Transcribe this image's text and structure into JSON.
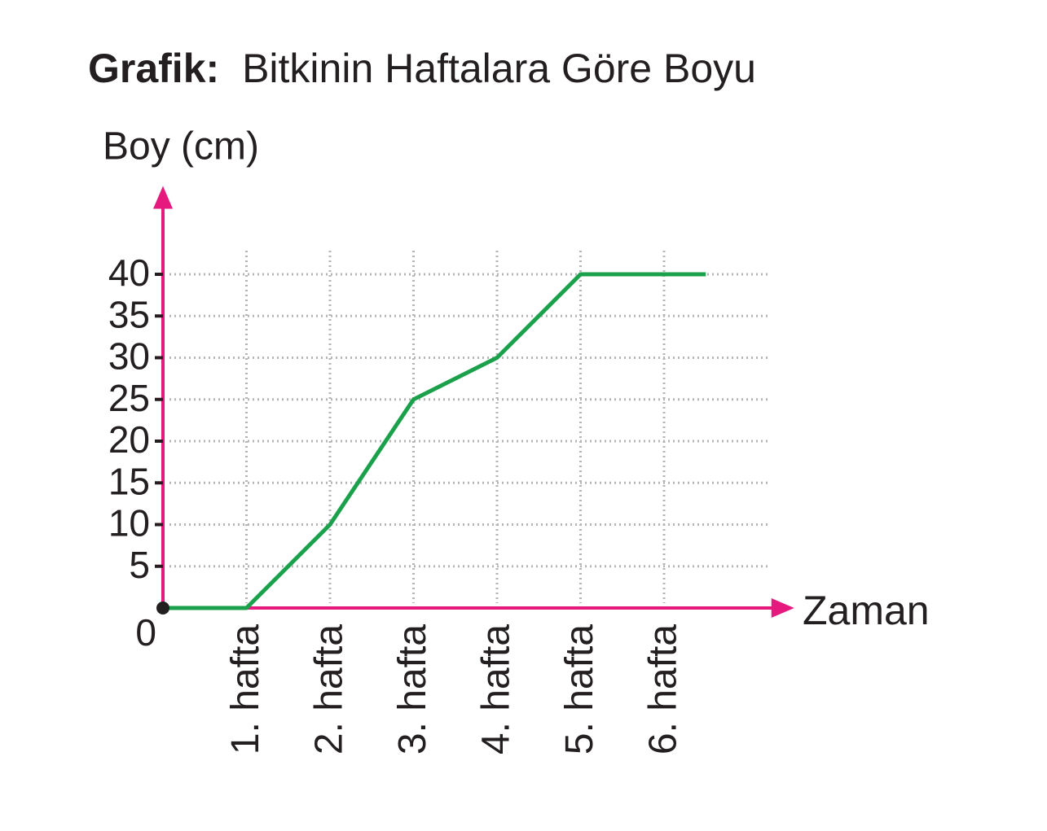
{
  "chart_data": {
    "type": "line",
    "title_label": "Grafik:",
    "title": "Bitkinin Haftalara Göre Boyu",
    "y_label": "Boy (cm)",
    "x_label": "Zaman",
    "x": [
      0,
      1,
      2,
      3,
      4,
      5,
      6,
      6.5
    ],
    "values": [
      0,
      0,
      10,
      25,
      30,
      40,
      40,
      40
    ],
    "color": "#1ba04b",
    "axis_color": "#e5197e",
    "xlim": [
      0,
      7.5
    ],
    "ylim": [
      0,
      50
    ],
    "xticks": [
      {
        "value": 1,
        "label": "1. hafta"
      },
      {
        "value": 2,
        "label": "2. hafta"
      },
      {
        "value": 3,
        "label": "3. hafta"
      },
      {
        "value": 4,
        "label": "4. hafta"
      },
      {
        "value": 5,
        "label": "5. hafta"
      },
      {
        "value": 6,
        "label": "6. hafta"
      }
    ],
    "yticks": [
      0,
      5,
      10,
      15,
      20,
      25,
      30,
      35,
      40
    ],
    "grid": true
  }
}
